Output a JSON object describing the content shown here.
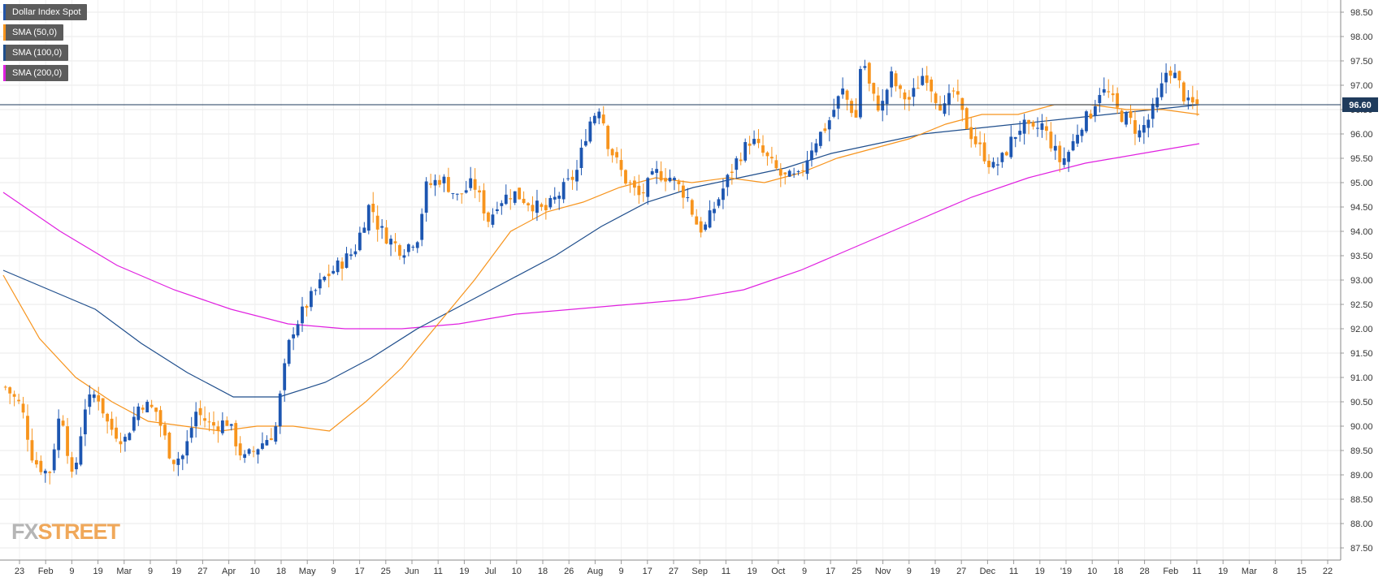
{
  "legend": [
    {
      "label": "Dollar Index Spot",
      "color": "#2255aa"
    },
    {
      "label": "SMA (50,0)",
      "color": "#f7941d"
    },
    {
      "label": "SMA (100,0)",
      "color": "#1f4e8c"
    },
    {
      "label": "SMA (200,0)",
      "color": "#e020e0"
    }
  ],
  "logo": {
    "prefix": "FX",
    "suffix": "STREET"
  },
  "colors": {
    "up": "#1d56b1",
    "down": "#f7941d",
    "sma50": "#f7941d",
    "sma100": "#1f4e8c",
    "sma200": "#e020e0",
    "grid": "#e8e8e8",
    "price_line": "#1f3b5c"
  },
  "chart_data": {
    "type": "candlestick",
    "title": "",
    "last_price": 96.6,
    "last_price_label": "96.60",
    "ylim": [
      87.25,
      98.75
    ],
    "y_ticks": [
      "98.50",
      "98.00",
      "97.50",
      "97.00",
      "96.50",
      "96.00",
      "95.50",
      "95.00",
      "94.50",
      "94.00",
      "93.50",
      "93.00",
      "92.50",
      "92.00",
      "91.50",
      "91.00",
      "90.50",
      "90.00",
      "89.50",
      "89.00",
      "88.50",
      "88.00",
      "87.50"
    ],
    "x_ticks": [
      "23",
      "Feb",
      "9",
      "19",
      "Mar",
      "9",
      "19",
      "27",
      "Apr",
      "10",
      "18",
      "May",
      "9",
      "17",
      "25",
      "Jun",
      "11",
      "19",
      "Jul",
      "10",
      "18",
      "26",
      "Aug",
      "9",
      "17",
      "27",
      "Sep",
      "11",
      "19",
      "Oct",
      "9",
      "17",
      "25",
      "Nov",
      "9",
      "19",
      "27",
      "Dec",
      "11",
      "19",
      "'19",
      "10",
      "18",
      "28",
      "Feb",
      "11",
      "19",
      "Mar",
      "8",
      "15",
      "22"
    ],
    "grid": true,
    "sma50": [
      93.1,
      91.8,
      91.0,
      90.5,
      90.1,
      90.0,
      89.9,
      90.0,
      90.0,
      89.9,
      90.5,
      91.2,
      92.1,
      93.0,
      94.0,
      94.4,
      94.6,
      94.9,
      95.1,
      95.0,
      95.1,
      95.0,
      95.2,
      95.5,
      95.7,
      95.9,
      96.2,
      96.4,
      96.4,
      96.6,
      96.6,
      96.5,
      96.5,
      96.4
    ],
    "sma100": [
      93.2,
      92.8,
      92.4,
      91.7,
      91.1,
      90.6,
      90.6,
      90.9,
      91.4,
      92.0,
      92.5,
      93.0,
      93.5,
      94.1,
      94.6,
      94.9,
      95.1,
      95.3,
      95.6,
      95.8,
      96.0,
      96.1,
      96.2,
      96.3,
      96.4,
      96.5,
      96.6
    ],
    "sma200": [
      94.8,
      94.0,
      93.3,
      92.8,
      92.4,
      92.1,
      92.0,
      92.0,
      92.1,
      92.3,
      92.4,
      92.5,
      92.6,
      92.8,
      93.2,
      93.7,
      94.2,
      94.7,
      95.1,
      95.4,
      95.6,
      95.8
    ]
  }
}
